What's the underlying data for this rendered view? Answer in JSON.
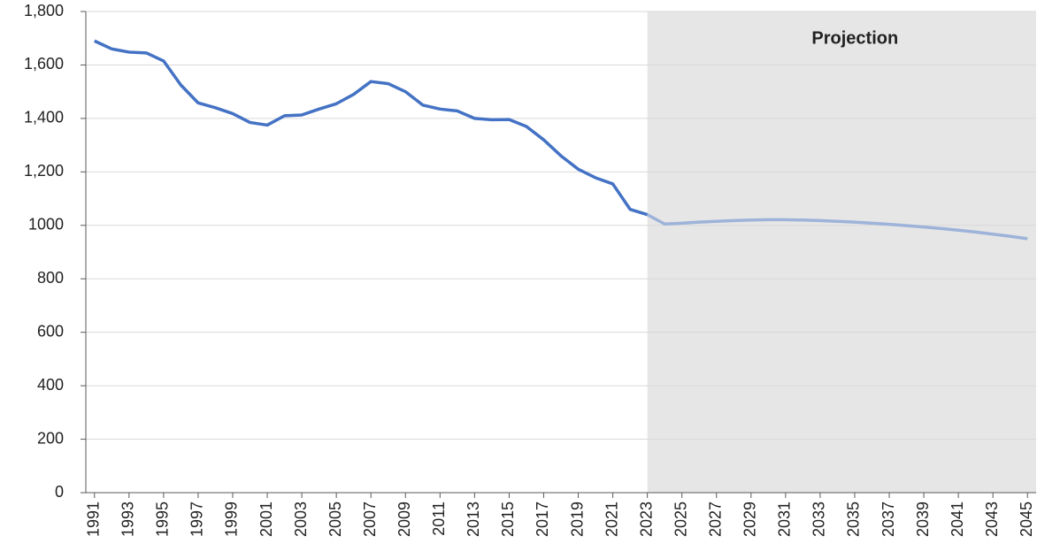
{
  "chart_data": {
    "type": "line",
    "annotation": "Projection",
    "xlim": [
      1990.5,
      2045.5
    ],
    "xticks": [
      1991,
      1993,
      1995,
      1997,
      1999,
      2001,
      2003,
      2005,
      2007,
      2009,
      2011,
      2013,
      2015,
      2017,
      2019,
      2021,
      2023,
      2025,
      2027,
      2029,
      2031,
      2033,
      2035,
      2037,
      2039,
      2041,
      2043,
      2045
    ],
    "ylim": [
      0,
      1800
    ],
    "yticks": [
      0,
      200,
      400,
      600,
      800,
      1000,
      {
        "value": 1200,
        "label": "1,200"
      },
      {
        "value": 1400,
        "label": "1,400"
      },
      {
        "value": 1600,
        "label": "1,600"
      },
      {
        "value": 1800,
        "label": "1,800"
      }
    ],
    "grid": true,
    "shade_color": "#e7e6e6",
    "series": [
      {
        "color": "#4472c4",
        "x": [
          1991,
          1992,
          1993,
          1994,
          1995,
          1996,
          1997,
          1998,
          1999,
          2000,
          2001,
          2002,
          2003,
          2004,
          2005,
          2006,
          2007,
          2008,
          2009,
          2010,
          2011,
          2012,
          2013,
          2014,
          2015,
          2016,
          2017,
          2018,
          2019,
          2020,
          2021,
          2022,
          2023
        ],
        "values": [
          1690,
          1660,
          1648,
          1645,
          1615,
          1525,
          1458,
          1440,
          1418,
          1385,
          1375,
          1410,
          1413,
          1435,
          1455,
          1490,
          1538,
          1530,
          1500,
          1450,
          1435,
          1428,
          1400,
          1395,
          1396,
          1370,
          1320,
          1260,
          1210,
          1178,
          1155,
          1060,
          1040
        ]
      },
      {
        "color": "#9db3d9",
        "x": [
          2023,
          2024,
          2025,
          2026,
          2027,
          2028,
          2029,
          2030,
          2031,
          2032,
          2033,
          2034,
          2035,
          2036,
          2037,
          2038,
          2039,
          2040,
          2041,
          2042,
          2043,
          2044,
          2045
        ],
        "values": [
          1040,
          1005,
          1008,
          1012,
          1015,
          1018,
          1020,
          1021,
          1021,
          1020,
          1018,
          1015,
          1012,
          1008,
          1004,
          999,
          994,
          988,
          982,
          975,
          967,
          959,
          950
        ]
      }
    ]
  }
}
